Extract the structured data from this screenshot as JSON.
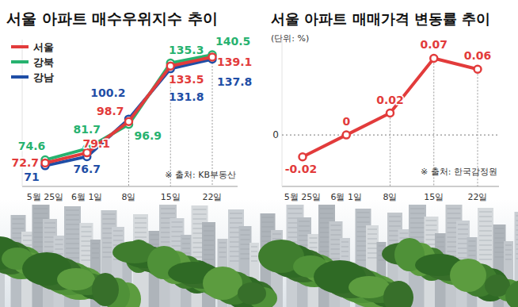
{
  "chart_data": [
    {
      "type": "line",
      "title": "서울 아파트 매수우위지수 추이",
      "categories": [
        "5월 25일",
        "6월 1일",
        "8일",
        "15일",
        "22일"
      ],
      "series": [
        {
          "name": "서울",
          "color": "#e23b3b",
          "values": [
            72.7,
            79.1,
            98.7,
            133.5,
            139.1
          ]
        },
        {
          "name": "강북",
          "color": "#27b26f",
          "values": [
            74.6,
            81.7,
            96.9,
            135.3,
            140.5
          ]
        },
        {
          "name": "강남",
          "color": "#1f4ea6",
          "values": [
            71,
            76.7,
            100.2,
            131.8,
            137.8
          ]
        }
      ],
      "ylim": [
        58,
        150
      ],
      "tick_labels": "x",
      "legend": "top-left",
      "data_labels": true,
      "marker": "circle",
      "annotations": [
        "※ 출처: KB부동산"
      ]
    },
    {
      "type": "line",
      "title": "서울 아파트 매매가격 변동률 추이",
      "subtitle": "(단위: %)",
      "categories": [
        "5월 25일",
        "6월 1일",
        "8일",
        "15일",
        "22일"
      ],
      "values": [
        -0.02,
        0,
        0.02,
        0.07,
        0.06
      ],
      "color": "#e23b3b",
      "ylim": [
        -0.047,
        0.087
      ],
      "yticks": [
        0
      ],
      "grid": true,
      "data_labels": true,
      "marker": "circle",
      "annotations": [
        "※ 출처: 한국감정원"
      ]
    }
  ]
}
